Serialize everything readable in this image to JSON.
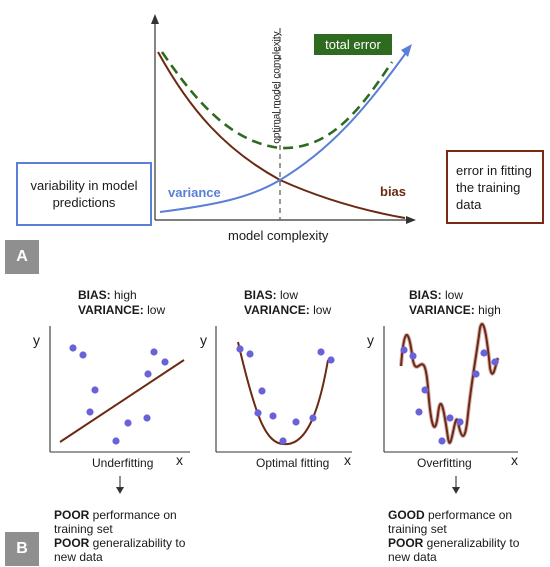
{
  "top": {
    "badge": "A",
    "left_box": "variability in model predictions",
    "right_box": "error in fitting the training data",
    "legend_total": "total error",
    "label_variance": "variance",
    "label_bias": "bias",
    "vertical_label": "optimal model complexity",
    "x_axis": "model complexity",
    "colors": {
      "variance": "#5a7fd6",
      "bias": "#6b2a12",
      "total": "#2e6a1f",
      "left_border": "#5a7fd6",
      "right_border": "#7a2a14"
    }
  },
  "bottom": {
    "badge": "B",
    "panels": [
      {
        "bias_key": "BIAS:",
        "bias_val": " high",
        "var_key": "VARIANCE:",
        "var_val": " low",
        "caption": "Underfitting",
        "y": "y",
        "x": "x"
      },
      {
        "bias_key": "BIAS:",
        "bias_val": " low",
        "var_key": "VARIANCE:",
        "var_val": " low",
        "caption": "Optimal fitting",
        "y": "y",
        "x": "x"
      },
      {
        "bias_key": "BIAS:",
        "bias_val": " low",
        "var_key": "VARIANCE:",
        "var_val": " high",
        "caption": "Overfitting",
        "y": "y",
        "x": "x"
      }
    ],
    "left_note": {
      "l1_b": "POOR",
      "l1": " performance on",
      "l2": "training set",
      "l3_b": "POOR",
      "l3": " generalizability to",
      "l4": "new data"
    },
    "right_note": {
      "l1_b": "GOOD",
      "l1": " performance on",
      "l2": "training set",
      "l3_b": "POOR",
      "l3": " generalizability to",
      "l4": "new data"
    },
    "point_color": "#6a62d9",
    "curve_color": "#6b2a12"
  }
}
